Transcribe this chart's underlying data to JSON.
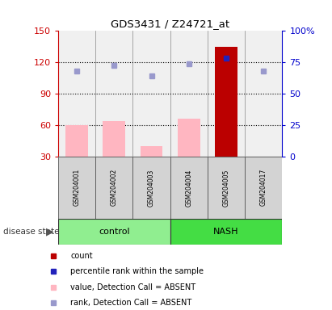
{
  "title": "GDS3431 / Z24721_at",
  "samples": [
    "GSM204001",
    "GSM204002",
    "GSM204003",
    "GSM204004",
    "GSM204005",
    "GSM204017"
  ],
  "ylim_left": [
    30,
    150
  ],
  "ylim_right": [
    0,
    100
  ],
  "yticks_left": [
    30,
    60,
    90,
    120,
    150
  ],
  "yticks_right": [
    0,
    25,
    50,
    75,
    100
  ],
  "ytick_labels_left": [
    "30",
    "60",
    "90",
    "120",
    "150"
  ],
  "ytick_labels_right": [
    "0",
    "25",
    "50",
    "75",
    "100%"
  ],
  "bar_values": [
    60,
    64,
    40,
    66,
    135,
    30
  ],
  "bar_colors": [
    "#FFB6C1",
    "#FFB6C1",
    "#FFB6C1",
    "#FFB6C1",
    "#BB0000",
    "#FFB6C1"
  ],
  "rank_dots": [
    112,
    117,
    107,
    119,
    124,
    112
  ],
  "rank_dot_colors": [
    "#9999CC",
    "#9999CC",
    "#9999CC",
    "#9999CC",
    "#2222BB",
    "#9999CC"
  ],
  "dotted_lines": [
    60,
    90,
    120
  ],
  "legend_items": [
    {
      "color": "#BB0000",
      "label": "count"
    },
    {
      "color": "#2222BB",
      "label": "percentile rank within the sample"
    },
    {
      "color": "#FFB6C1",
      "label": "value, Detection Call = ABSENT"
    },
    {
      "color": "#9999CC",
      "label": "rank, Detection Call = ABSENT"
    }
  ],
  "disease_state_label": "disease state",
  "tick_color_left": "#CC0000",
  "tick_color_right": "#0000CC",
  "plot_bg": "#F0F0F0",
  "sample_bg": "#D3D3D3",
  "control_bg": "#90EE90",
  "nash_bg": "#44DD44",
  "fig_bg": "#FFFFFF"
}
